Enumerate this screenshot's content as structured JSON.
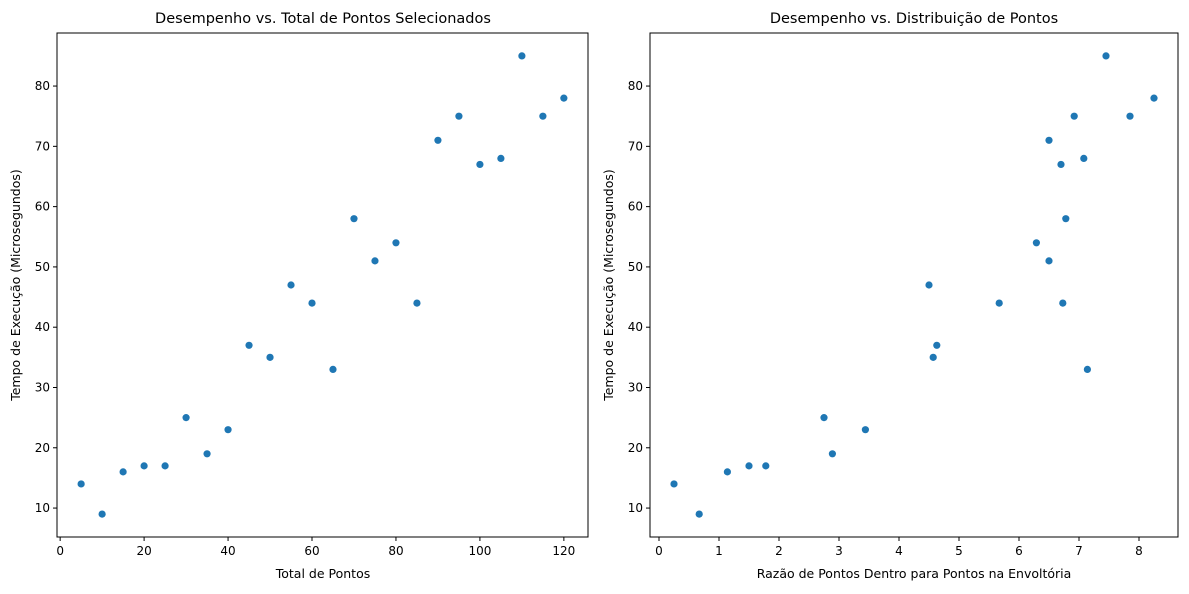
{
  "chart_data": [
    {
      "type": "scatter",
      "title": "Desempenho vs. Total de Pontos Selecionados",
      "xlabel": "Total de Pontos",
      "ylabel": "Tempo de Execução (Microsegundos)",
      "xlim": [
        -0.75,
        125.75
      ],
      "ylim": [
        5.2,
        88.8
      ],
      "xticks": [
        0,
        20,
        40,
        60,
        80,
        100,
        120
      ],
      "yticks": [
        10,
        20,
        30,
        40,
        50,
        60,
        70,
        80
      ],
      "color": "#1f77b4",
      "grid": false,
      "points": [
        {
          "x": 5,
          "y": 14
        },
        {
          "x": 10,
          "y": 9
        },
        {
          "x": 15,
          "y": 16
        },
        {
          "x": 20,
          "y": 17
        },
        {
          "x": 25,
          "y": 17
        },
        {
          "x": 30,
          "y": 25
        },
        {
          "x": 35,
          "y": 19
        },
        {
          "x": 40,
          "y": 23
        },
        {
          "x": 45,
          "y": 37
        },
        {
          "x": 50,
          "y": 35
        },
        {
          "x": 55,
          "y": 47
        },
        {
          "x": 60,
          "y": 44
        },
        {
          "x": 65,
          "y": 33
        },
        {
          "x": 70,
          "y": 58
        },
        {
          "x": 75,
          "y": 51
        },
        {
          "x": 80,
          "y": 54
        },
        {
          "x": 85,
          "y": 44
        },
        {
          "x": 90,
          "y": 71
        },
        {
          "x": 95,
          "y": 75
        },
        {
          "x": 100,
          "y": 67
        },
        {
          "x": 105,
          "y": 68
        },
        {
          "x": 110,
          "y": 85
        },
        {
          "x": 115,
          "y": 75
        },
        {
          "x": 120,
          "y": 78
        }
      ]
    },
    {
      "type": "scatter",
      "title": "Desempenho vs. Distribuição de Pontos",
      "xlabel": "Razão de Pontos Dentro para Pontos na Envoltória",
      "ylabel": "Tempo de Execução (Microsegundos)",
      "xlim": [
        -0.15,
        8.65
      ],
      "ylim": [
        5.2,
        88.8
      ],
      "xticks": [
        0,
        1,
        2,
        3,
        4,
        5,
        6,
        7,
        8
      ],
      "yticks": [
        10,
        20,
        30,
        40,
        50,
        60,
        70,
        80
      ],
      "color": "#1f77b4",
      "grid": false,
      "points": [
        {
          "x": 0.25,
          "y": 14
        },
        {
          "x": 0.67,
          "y": 9
        },
        {
          "x": 1.14,
          "y": 16
        },
        {
          "x": 1.5,
          "y": 17
        },
        {
          "x": 1.78,
          "y": 17
        },
        {
          "x": 2.75,
          "y": 25
        },
        {
          "x": 2.89,
          "y": 19
        },
        {
          "x": 3.44,
          "y": 23
        },
        {
          "x": 4.5,
          "y": 47
        },
        {
          "x": 4.57,
          "y": 35
        },
        {
          "x": 4.63,
          "y": 37
        },
        {
          "x": 5.67,
          "y": 44
        },
        {
          "x": 6.29,
          "y": 54
        },
        {
          "x": 6.5,
          "y": 51
        },
        {
          "x": 6.5,
          "y": 71
        },
        {
          "x": 6.7,
          "y": 67
        },
        {
          "x": 6.73,
          "y": 44
        },
        {
          "x": 6.78,
          "y": 58
        },
        {
          "x": 6.92,
          "y": 75
        },
        {
          "x": 7.08,
          "y": 68
        },
        {
          "x": 7.14,
          "y": 33
        },
        {
          "x": 7.45,
          "y": 85
        },
        {
          "x": 7.85,
          "y": 75
        },
        {
          "x": 8.25,
          "y": 78
        }
      ]
    }
  ]
}
